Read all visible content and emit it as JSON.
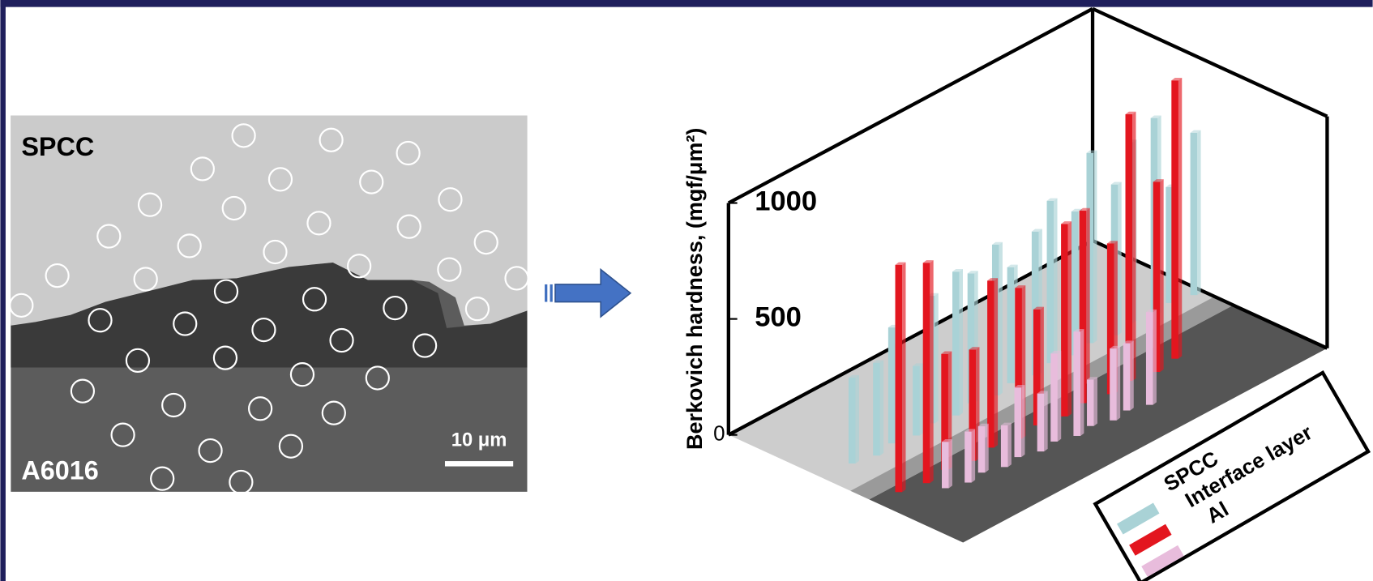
{
  "micrograph": {
    "labels": [
      "SPCC",
      "A6016"
    ],
    "scale_bar": "10 μm"
  },
  "chart_data": {
    "type": "bar3d",
    "y_label": "Berkovich hardness, (mgf/μm²)",
    "ylim": [
      0,
      1000
    ],
    "yticks": [
      0,
      500,
      1000
    ],
    "series": [
      {
        "name": "SPCC",
        "color": "#a9d2d6",
        "values": [
          370,
          400,
          500,
          300,
          550,
          620,
          560,
          650,
          500,
          620,
          700,
          620,
          820,
          650,
          780,
          850,
          500,
          700
        ]
      },
      {
        "name": "Interface layer",
        "color": "#e3161f",
        "values": [
          980,
          950,
          500,
          480,
          720,
          650,
          500,
          830,
          830,
          650,
          1150,
          820,
          1200
        ]
      },
      {
        "name": "Al",
        "color": "#e8bcdc",
        "values": [
          200,
          220,
          200,
          180,
          300,
          250,
          380,
          450,
          200,
          310,
          290,
          400
        ]
      }
    ]
  }
}
